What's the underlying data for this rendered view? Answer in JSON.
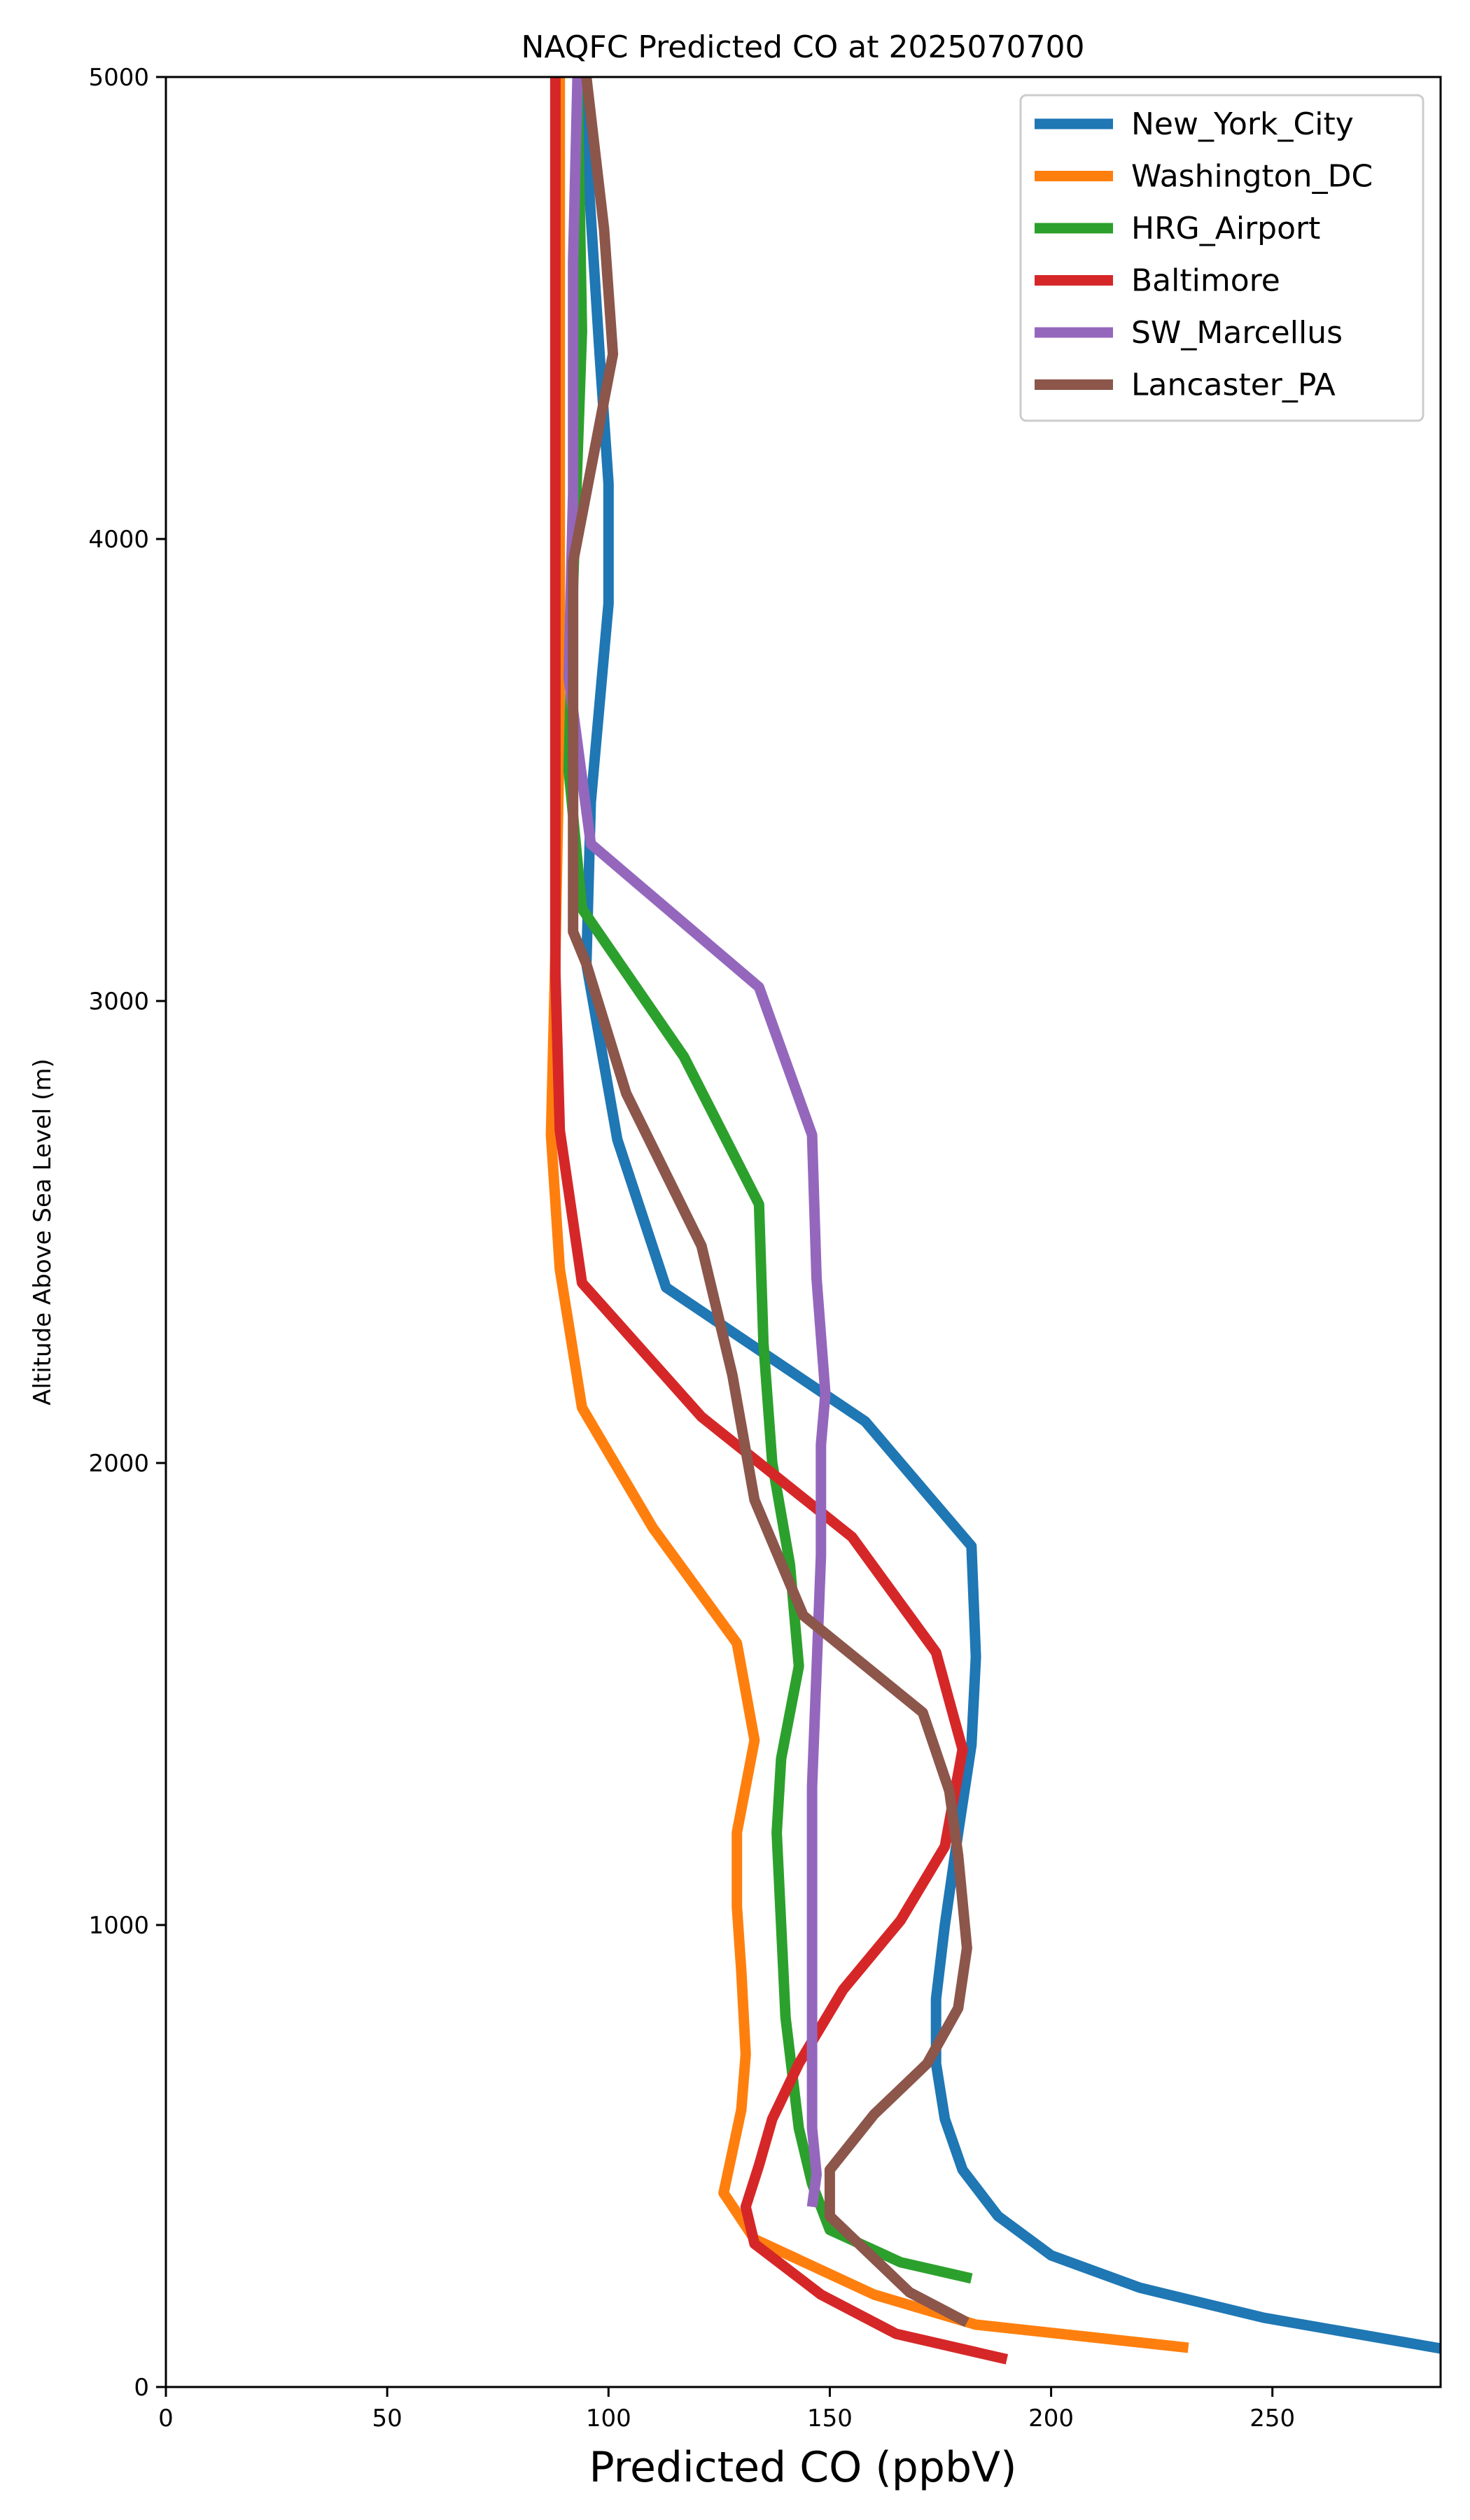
{
  "chart_data": {
    "type": "line",
    "title": "NAQFC Predicted CO at 2025070700",
    "xlabel": "Predicted CO (ppbV)",
    "ylabel": "Altitude Above Sea Level (m)",
    "xlim": [
      0,
      288
    ],
    "ylim": [
      0,
      5000
    ],
    "xticks": [
      0,
      50,
      100,
      150,
      200,
      250
    ],
    "yticks": [
      0,
      1000,
      2000,
      3000,
      4000,
      5000
    ],
    "grid": false,
    "legend_position": "top-right",
    "series": [
      {
        "name": "New_York_City",
        "color": "#1f77b4",
        "points": [
          [
            290,
            80
          ],
          [
            248,
            150
          ],
          [
            220,
            215
          ],
          [
            200,
            285
          ],
          [
            188,
            370
          ],
          [
            180,
            470
          ],
          [
            176,
            580
          ],
          [
            174,
            700
          ],
          [
            174,
            840
          ],
          [
            176,
            1000
          ],
          [
            179,
            1200
          ],
          [
            182,
            1390
          ],
          [
            183,
            1580
          ],
          [
            182,
            1820
          ],
          [
            158,
            2090
          ],
          [
            113,
            2380
          ],
          [
            102,
            2700
          ],
          [
            95,
            3080
          ],
          [
            96,
            3430
          ],
          [
            100,
            3860
          ],
          [
            100,
            4120
          ],
          [
            98,
            4400
          ],
          [
            96,
            4700
          ],
          [
            94,
            5000
          ]
        ]
      },
      {
        "name": "Washington_DC",
        "color": "#ff7f0e",
        "points": [
          [
            231,
            85
          ],
          [
            183,
            135
          ],
          [
            160,
            200
          ],
          [
            133,
            320
          ],
          [
            126,
            420
          ],
          [
            130,
            600
          ],
          [
            131,
            720
          ],
          [
            130,
            900
          ],
          [
            129,
            1040
          ],
          [
            129,
            1200
          ],
          [
            133,
            1400
          ],
          [
            129,
            1610
          ],
          [
            110,
            1860
          ],
          [
            94,
            2120
          ],
          [
            89,
            2420
          ],
          [
            87,
            2710
          ],
          [
            88,
            3100
          ],
          [
            89,
            3600
          ],
          [
            89,
            4300
          ],
          [
            89,
            5000
          ]
        ]
      },
      {
        "name": "HRG_Airport",
        "color": "#2ca02c",
        "points": [
          [
            182,
            235
          ],
          [
            166,
            270
          ],
          [
            150,
            340
          ],
          [
            146,
            440
          ],
          [
            143,
            560
          ],
          [
            140,
            800
          ],
          [
            139,
            1000
          ],
          [
            138,
            1200
          ],
          [
            139,
            1360
          ],
          [
            143,
            1560
          ],
          [
            141,
            1780
          ],
          [
            137,
            2000
          ],
          [
            135,
            2260
          ],
          [
            134,
            2560
          ],
          [
            117,
            2880
          ],
          [
            94,
            3200
          ],
          [
            91,
            3500
          ],
          [
            92,
            3900
          ],
          [
            94,
            4450
          ],
          [
            93,
            5000
          ]
        ]
      },
      {
        "name": "Baltimore",
        "color": "#d62728",
        "points": [
          [
            190,
            60
          ],
          [
            165,
            115
          ],
          [
            148,
            200
          ],
          [
            133,
            310
          ],
          [
            131,
            390
          ],
          [
            134,
            480
          ],
          [
            137,
            580
          ],
          [
            143,
            700
          ],
          [
            153,
            860
          ],
          [
            166,
            1010
          ],
          [
            176,
            1170
          ],
          [
            180,
            1380
          ],
          [
            174,
            1590
          ],
          [
            155,
            1840
          ],
          [
            121,
            2100
          ],
          [
            94,
            2390
          ],
          [
            89,
            2720
          ],
          [
            88,
            3060
          ],
          [
            88,
            3600
          ],
          [
            88,
            4300
          ],
          [
            88,
            5000
          ]
        ]
      },
      {
        "name": "SW_Marcellus",
        "color": "#9467bd",
        "points": [
          [
            146,
            390
          ],
          [
            147,
            460
          ],
          [
            146,
            560
          ],
          [
            146,
            650
          ],
          [
            146,
            750
          ],
          [
            146,
            900
          ],
          [
            146,
            1050
          ],
          [
            146,
            1300
          ],
          [
            147,
            1550
          ],
          [
            148,
            1800
          ],
          [
            148,
            2040
          ],
          [
            149,
            2150
          ],
          [
            147,
            2400
          ],
          [
            146,
            2710
          ],
          [
            134,
            3030
          ],
          [
            96,
            3340
          ],
          [
            91,
            3700
          ],
          [
            92,
            4100
          ],
          [
            92,
            4600
          ],
          [
            93,
            5000
          ]
        ]
      },
      {
        "name": "Lancaster_PA",
        "color": "#8c564b",
        "points": [
          [
            181,
            140
          ],
          [
            168,
            205
          ],
          [
            150,
            370
          ],
          [
            150,
            470
          ],
          [
            160,
            590
          ],
          [
            172,
            700
          ],
          [
            179,
            820
          ],
          [
            181,
            950
          ],
          [
            179,
            1150
          ],
          [
            177,
            1290
          ],
          [
            171,
            1460
          ],
          [
            144,
            1670
          ],
          [
            133,
            1920
          ],
          [
            128,
            2190
          ],
          [
            121,
            2470
          ],
          [
            104,
            2800
          ],
          [
            95,
            3080
          ],
          [
            92,
            3150
          ],
          [
            92,
            3550
          ],
          [
            92,
            3950
          ],
          [
            101,
            4400
          ],
          [
            99,
            4670
          ],
          [
            95,
            5000
          ]
        ]
      }
    ]
  }
}
